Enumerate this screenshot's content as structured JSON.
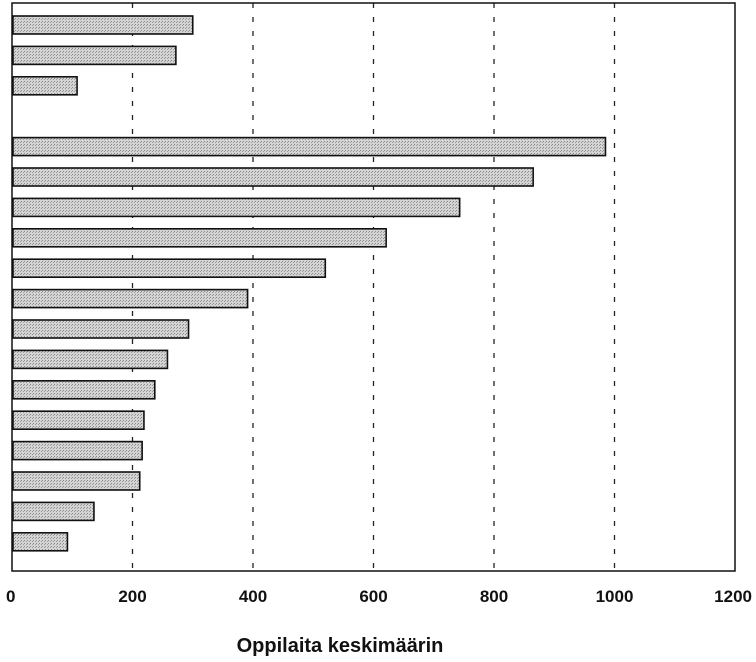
{
  "chart_data": {
    "type": "bar",
    "orientation": "horizontal",
    "xlabel": "Oppilaita keskimäärin",
    "ylabel": "",
    "xlim": [
      0,
      1200
    ],
    "xticks": [
      "0",
      "200",
      "400",
      "600",
      "800",
      "1000",
      "1200"
    ],
    "grid": "vertical dashed",
    "groups": [
      {
        "values": [
          300,
          272,
          108
        ]
      },
      {
        "values": [
          985,
          865,
          743,
          621,
          520,
          391,
          293,
          258,
          237,
          219,
          216,
          212,
          136,
          92
        ]
      }
    ]
  },
  "colors": {
    "bar_fill": "#c8c8c8",
    "bar_stroke": "#111111",
    "grid": "#222222"
  }
}
